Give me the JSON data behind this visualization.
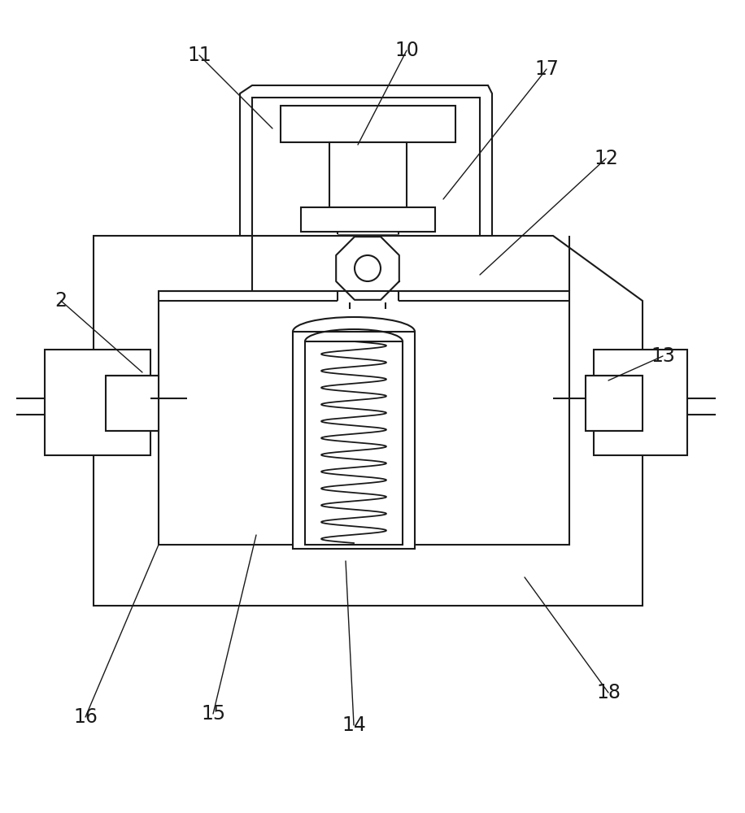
{
  "bg_color": "#ffffff",
  "line_color": "#1a1a1a",
  "lw": 1.5,
  "fig_width": 9.16,
  "fig_height": 10.0,
  "labels": [
    [
      "2",
      75,
      370,
      175,
      458
    ],
    [
      "10",
      500,
      62,
      440,
      178
    ],
    [
      "11",
      245,
      68,
      335,
      158
    ],
    [
      "12",
      745,
      195,
      590,
      338
    ],
    [
      "13",
      815,
      438,
      748,
      468
    ],
    [
      "14",
      435,
      892,
      425,
      690
    ],
    [
      "15",
      262,
      878,
      315,
      658
    ],
    [
      "16",
      105,
      882,
      195,
      670
    ],
    [
      "17",
      672,
      85,
      545,
      245
    ],
    [
      "18",
      748,
      852,
      645,
      710
    ]
  ]
}
